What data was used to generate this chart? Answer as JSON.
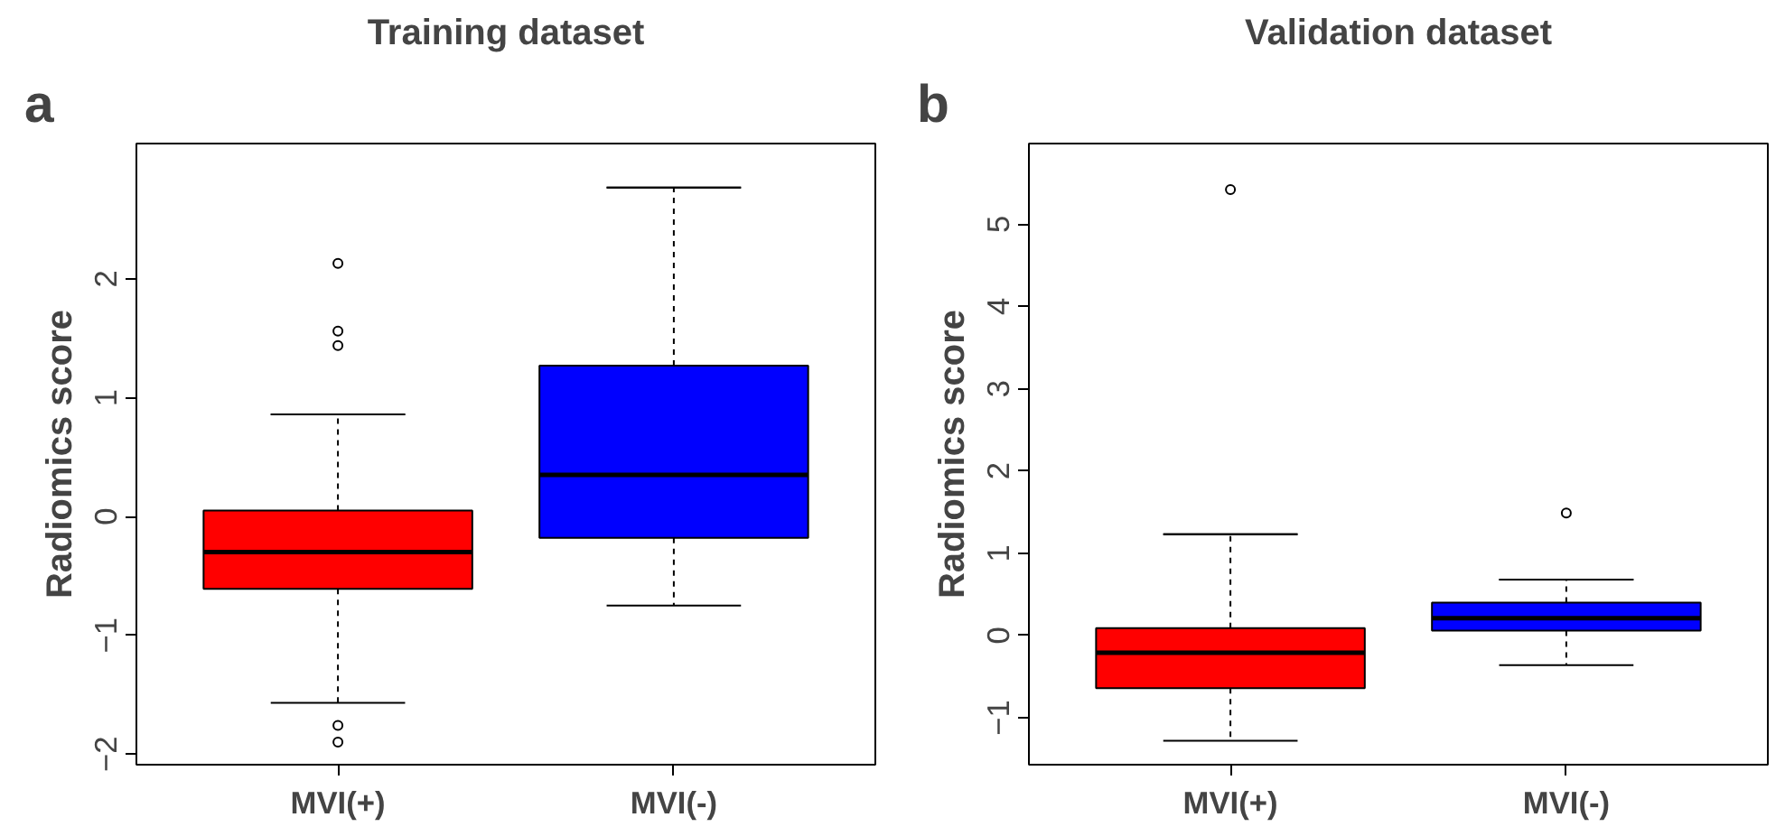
{
  "chart_data": [
    {
      "type": "box",
      "title": "Training dataset",
      "ylabel": "Radiomics score",
      "categories": [
        "MVI(+)",
        "MVI(-)"
      ],
      "colors": [
        "#ff0000",
        "#0000ff"
      ],
      "boxes": [
        {
          "low": -1.57,
          "q1": -0.61,
          "median": -0.3,
          "q3": 0.05,
          "high": 0.86,
          "outliers": [
            2.13,
            1.56,
            1.44,
            -1.76,
            -1.9
          ]
        },
        {
          "low": -0.75,
          "q1": -0.18,
          "median": 0.35,
          "q3": 1.27,
          "high": 2.77
        }
      ],
      "ylim": [
        -2.09,
        3.14
      ],
      "yticks": [
        -2,
        -1,
        0,
        1,
        2
      ],
      "annotations": [
        "a"
      ]
    },
    {
      "type": "box",
      "title": "Validation dataset",
      "ylabel": "Radiomics score",
      "categories": [
        "MVI(+)",
        "MVI(-)"
      ],
      "colors": [
        "#ff0000",
        "#0000ff"
      ],
      "boxes": [
        {
          "low": -1.28,
          "q1": -0.64,
          "median": -0.21,
          "q3": 0.09,
          "high": 1.23,
          "outliers": [
            5.42
          ]
        },
        {
          "low": -0.36,
          "q1": 0.06,
          "median": 0.21,
          "q3": 0.4,
          "high": 0.68,
          "outliers": [
            1.49
          ]
        }
      ],
      "ylim": [
        -1.57,
        5.98
      ],
      "yticks": [
        -1,
        0,
        1,
        2,
        3,
        4,
        5
      ],
      "annotations": [
        "b"
      ]
    }
  ]
}
